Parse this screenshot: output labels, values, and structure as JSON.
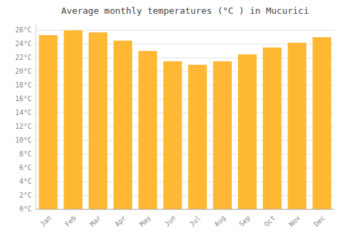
{
  "chart_data": {
    "type": "bar",
    "title": "Average monthly temperatures (°C ) in Mucurici",
    "categories": [
      "Jan",
      "Feb",
      "Mar",
      "Apr",
      "May",
      "Jun",
      "Jul",
      "Aug",
      "Sep",
      "Oct",
      "Nov",
      "Dec"
    ],
    "values": [
      25.3,
      26.0,
      25.7,
      24.5,
      23.0,
      21.5,
      21.0,
      21.5,
      22.5,
      23.5,
      24.2,
      25.0
    ],
    "color": "#FFB833",
    "ylim": [
      0,
      27
    ],
    "yticks": [
      {
        "value": 0,
        "label": "0°C"
      },
      {
        "value": 2,
        "label": "2°C"
      },
      {
        "value": 4,
        "label": "4°C"
      },
      {
        "value": 6,
        "label": "6°C"
      },
      {
        "value": 8,
        "label": "8°C"
      },
      {
        "value": 10,
        "label": "10°C"
      },
      {
        "value": 12,
        "label": "12°C"
      },
      {
        "value": 14,
        "label": "14°C"
      },
      {
        "value": 16,
        "label": "16°C"
      },
      {
        "value": 18,
        "label": "18°C"
      },
      {
        "value": 20,
        "label": "20°C"
      },
      {
        "value": 22,
        "label": "22°C"
      },
      {
        "value": 24,
        "label": "24°C"
      },
      {
        "value": 26,
        "label": "26°C"
      }
    ],
    "grid": true
  }
}
